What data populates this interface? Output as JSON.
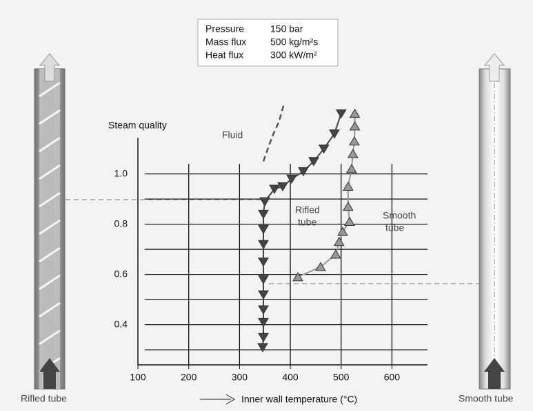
{
  "chart_data": {
    "type": "line",
    "info_box": [
      [
        "Pressure",
        "150 bar"
      ],
      [
        "Mass flux",
        "500 kg/m²s"
      ],
      [
        "Heat flux",
        "300 kW/m²"
      ]
    ],
    "y_label": "Steam quality",
    "x_label": "Inner wall temperature (°C)",
    "left_caption": "Rifled tube",
    "right_caption": "Smooth tube",
    "xlim": [
      100,
      670
    ],
    "ylim": [
      0.24,
      1.28
    ],
    "xticks": [
      100,
      200,
      300,
      400,
      500,
      600
    ],
    "xgrid": [
      200,
      300,
      400,
      500,
      600
    ],
    "yticks": [
      {
        "value": 0.4,
        "label": "0.4"
      },
      {
        "value": 0.6,
        "label": "0.6"
      },
      {
        "value": 0.8,
        "label": "0.8"
      },
      {
        "value": 1.0,
        "label": "1.0"
      }
    ],
    "ygrid": [
      0.3,
      0.4,
      0.5,
      0.6,
      0.7,
      0.8,
      0.9,
      1.0
    ],
    "grid": true,
    "series": [
      {
        "name": "Fluid",
        "color": "#555555",
        "dashed": true,
        "x": [
          347,
          364.6,
          378,
          387.7
        ],
        "values": [
          1.05,
          1.15,
          1.21,
          1.28
        ]
      },
      {
        "name": [
          "Rifled",
          "tube"
        ],
        "color": "#444444",
        "marker": "down",
        "x": [
          345.6,
          347,
          347,
          347,
          347,
          347,
          347,
          347,
          347,
          347,
          349.7,
          368.7,
          385,
          402.6,
          425.6,
          446,
          466,
          486.7,
          500
        ],
        "values": [
          0.31,
          0.35,
          0.41,
          0.46,
          0.52,
          0.58,
          0.65,
          0.72,
          0.78,
          0.84,
          0.89,
          0.94,
          0.95,
          0.98,
          1.01,
          1.05,
          1.1,
          1.16,
          1.24
        ]
      },
      {
        "name": [
          "Smooth",
          "tube"
        ],
        "color": "#999999",
        "marker": "up",
        "x": [
          414.8,
          459.6,
          489.4,
          496,
          503,
          516.6,
          513.8,
          513.8,
          520.6,
          523.3,
          526,
          527,
          527
        ],
        "values": [
          0.59,
          0.63,
          0.68,
          0.73,
          0.77,
          0.81,
          0.87,
          0.95,
          1.02,
          1.08,
          1.13,
          1.19,
          1.24
        ]
      }
    ]
  }
}
